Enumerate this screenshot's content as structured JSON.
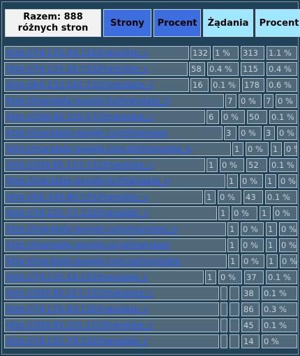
{
  "header": {
    "total_line1": "Razem: 888",
    "total_line2": "różnych stron",
    "col_pages": "Strony",
    "col_pages_pct": "Procent",
    "col_requests": "Żądania",
    "col_requests_pct": "Procent"
  },
  "rows": [
    {
      "url": "http://74.125.43.132/translate_c",
      "pages": "132",
      "pages_pct": "1 %",
      "req": "313",
      "req_pct": "1.1 %"
    },
    {
      "url": "http://74.125.39.132/translate_c",
      "pages": "58",
      "pages_pct": "0.4 %",
      "req": "115",
      "req_pct": "0.4 %"
    },
    {
      "url": "http://64.233.161.132/translate_c",
      "pages": "16",
      "pages_pct": "0.1 %",
      "req": "178",
      "req_pct": "0.6 %"
    },
    {
      "url": "http://translate.google.hu/translate_p",
      "pages": "7",
      "pages_pct": "0 %",
      "req": "7",
      "req_pct": "0 %"
    },
    {
      "url": "http://209.85.129.132/translate_c",
      "pages": "6",
      "pages_pct": "0 %",
      "req": "50",
      "req_pct": "0.1 %"
    },
    {
      "url": "http://translate.google.com/translate",
      "pages": "3",
      "pages_pct": "0 %",
      "req": "3",
      "req_pct": "0 %"
    },
    {
      "url": "http://translate.google.com.bh/translate_p",
      "pages": "1",
      "pages_pct": "0 %",
      "req": "1",
      "req_pct": "0 %"
    },
    {
      "url": "http://209.85.153.132/translate_c",
      "pages": "1",
      "pages_pct": "0 %",
      "req": "52",
      "req_pct": "0.1 %"
    },
    {
      "url": "http://translate.google.hu/translate_n",
      "pages": "1",
      "pages_pct": "0 %",
      "req": "1",
      "req_pct": "0 %"
    },
    {
      "url": "http://66.249.89.132/translate_c",
      "pages": "1",
      "pages_pct": "0 %",
      "req": "43",
      "req_pct": "0.1 %"
    },
    {
      "url": "http://74.125.77.132/translate_c",
      "pages": "1",
      "pages_pct": "0 %",
      "req": "1",
      "req_pct": "0 %"
    },
    {
      "url": "http://translate.google.com/translate_p",
      "pages": "1",
      "pages_pct": "0 %",
      "req": "1",
      "req_pct": "0 %"
    },
    {
      "url": "http://translate.google.co.jp/translate",
      "pages": "1",
      "pages_pct": "0 %",
      "req": "1",
      "req_pct": "0 %"
    },
    {
      "url": "http://translate.google.com.sa/translate",
      "pages": "1",
      "pages_pct": "0 %",
      "req": "1",
      "req_pct": "0 %"
    },
    {
      "url": "http://74.125.19.132/translate_c",
      "pages": "1",
      "pages_pct": "0 %",
      "req": "37",
      "req_pct": "0.1 %"
    },
    {
      "url": "http://209.85.227.132/translate_c",
      "pages": "",
      "pages_pct": "",
      "req": "38",
      "req_pct": "0.1 %"
    },
    {
      "url": "http://74.125.93.132/translate_c",
      "pages": "",
      "pages_pct": "",
      "req": "86",
      "req_pct": "0.3 %"
    },
    {
      "url": "http://209.85.231.132/translate_c",
      "pages": "",
      "pages_pct": "",
      "req": "45",
      "req_pct": "0.1 %"
    },
    {
      "url": "http://74.125.79.132/translate_c",
      "pages": "",
      "pages_pct": "",
      "req": "14",
      "req_pct": "0 %"
    }
  ]
}
